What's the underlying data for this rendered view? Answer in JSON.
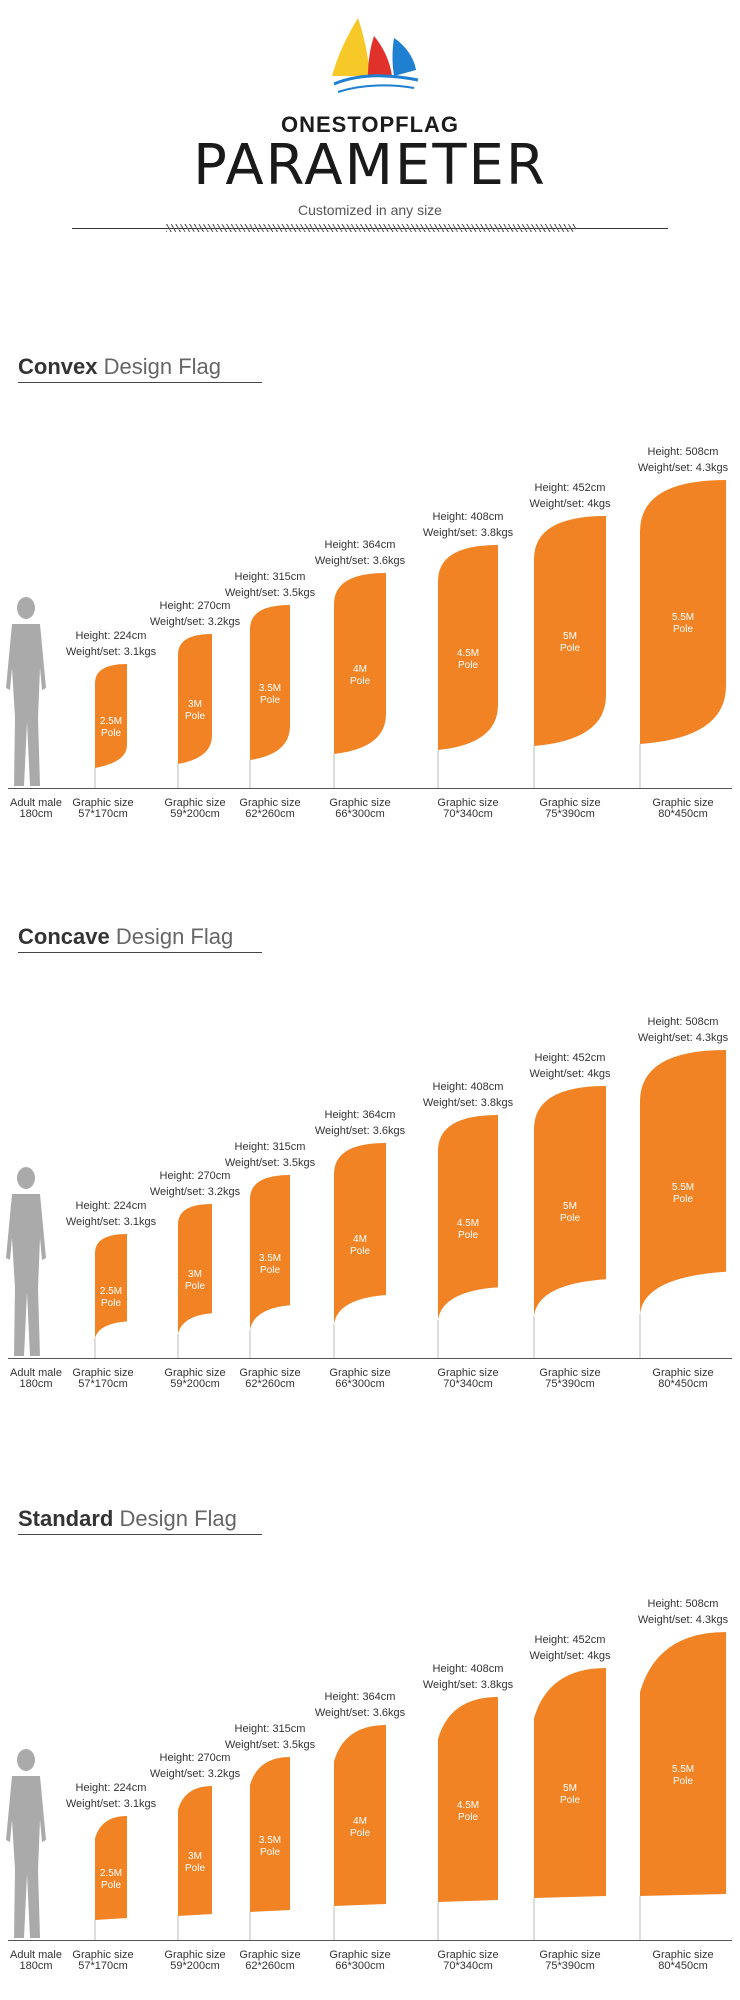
{
  "header": {
    "brand": "ONESTOPFLAG",
    "title": "PARAMETER",
    "subtitle": "Customized in any size"
  },
  "colors": {
    "flag": "#f18324",
    "figure": "#aaaaaa",
    "logo_yellow": "#f7c928",
    "logo_red": "#e0312a",
    "logo_blue": "#1f7fd0"
  },
  "adult": {
    "line1": "Adult male",
    "line2": "180cm"
  },
  "sections": [
    {
      "bold": "Convex",
      "rest": " Design Flag",
      "shape": "convex"
    },
    {
      "bold": "Concave",
      "rest": " Design Flag",
      "shape": "concave"
    },
    {
      "bold": "Standard",
      "rest": " Design Flag",
      "shape": "standard"
    }
  ],
  "flags": [
    {
      "height_label": "Height: 224cm",
      "weight_label": "Weight/set: 3.1kgs",
      "pole_line1": "2.5M",
      "pole_line2": "Pole",
      "graphic_line1": "Graphic size",
      "graphic_line2": "57*170cm",
      "height_cm": 224
    },
    {
      "height_label": "Height: 270cm",
      "weight_label": "Weight/set: 3.2kgs",
      "pole_line1": "3M",
      "pole_line2": "Pole",
      "graphic_line1": "Graphic size",
      "graphic_line2": "59*200cm",
      "height_cm": 270
    },
    {
      "height_label": "Height: 315cm",
      "weight_label": "Weight/set: 3.5kgs",
      "pole_line1": "3.5M",
      "pole_line2": "Pole",
      "graphic_line1": "Graphic size",
      "graphic_line2": "62*260cm",
      "height_cm": 315
    },
    {
      "height_label": "Height: 364cm",
      "weight_label": "Weight/set: 3.6kgs",
      "pole_line1": "4M",
      "pole_line2": "Pole",
      "graphic_line1": "Graphic size",
      "graphic_line2": "66*300cm",
      "height_cm": 364
    },
    {
      "height_label": "Height: 408cm",
      "weight_label": "Weight/set: 3.8kgs",
      "pole_line1": "4.5M",
      "pole_line2": "Pole",
      "graphic_line1": "Graphic size",
      "graphic_line2": "70*340cm",
      "height_cm": 408
    },
    {
      "height_label": "Height: 452cm",
      "weight_label": "Weight/set: 4kgs",
      "pole_line1": "5M",
      "pole_line2": "Pole",
      "graphic_line1": "Graphic size",
      "graphic_line2": "75*390cm",
      "height_cm": 452
    },
    {
      "height_label": "Height: 508cm",
      "weight_label": "Weight/set: 4.3kgs",
      "pole_line1": "5.5M",
      "pole_line2": "Pole",
      "graphic_line1": "Graphic size",
      "graphic_line2": "80*450cm",
      "height_cm": 508
    }
  ]
}
